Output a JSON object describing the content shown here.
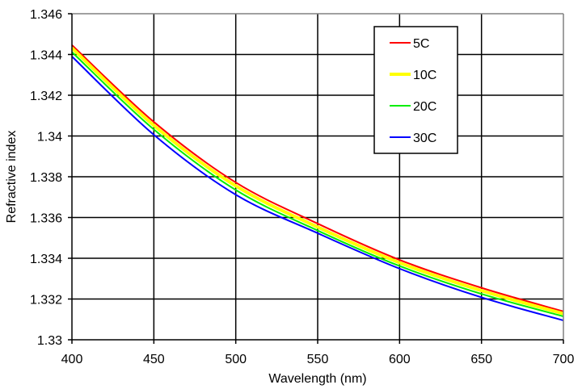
{
  "chart_data": {
    "type": "line",
    "title": "",
    "xlabel": "Wavelength (nm)",
    "ylabel": "Refractive index",
    "xlim": [
      400,
      700
    ],
    "ylim": [
      1.33,
      1.346
    ],
    "xticks": [
      "400",
      "450",
      "500",
      "550",
      "600",
      "650",
      "700"
    ],
    "yticks": [
      "1.33",
      "1.332",
      "1.334",
      "1.336",
      "1.338",
      "1.34",
      "1.342",
      "1.344",
      "1.346"
    ],
    "grid": true,
    "legend_position": "top-right",
    "x": [
      400,
      450,
      500,
      550,
      600,
      650,
      700
    ],
    "series": [
      {
        "name": "5C",
        "color": "#ff0000",
        "values": [
          1.34446,
          1.34069,
          1.33772,
          1.3357,
          1.33392,
          1.33255,
          1.33139
        ]
      },
      {
        "name": "10C",
        "color": "#ffff00",
        "values": [
          1.34432,
          1.34052,
          1.33755,
          1.33553,
          1.33378,
          1.33241,
          1.33128
        ]
      },
      {
        "name": "20C",
        "color": "#00ee00",
        "values": [
          1.34412,
          1.34032,
          1.33735,
          1.33536,
          1.33362,
          1.33225,
          1.33115
        ]
      },
      {
        "name": "30C",
        "color": "#0000ff",
        "values": [
          1.3439,
          1.34006,
          1.33712,
          1.33523,
          1.33349,
          1.33208,
          1.33095
        ]
      }
    ]
  }
}
